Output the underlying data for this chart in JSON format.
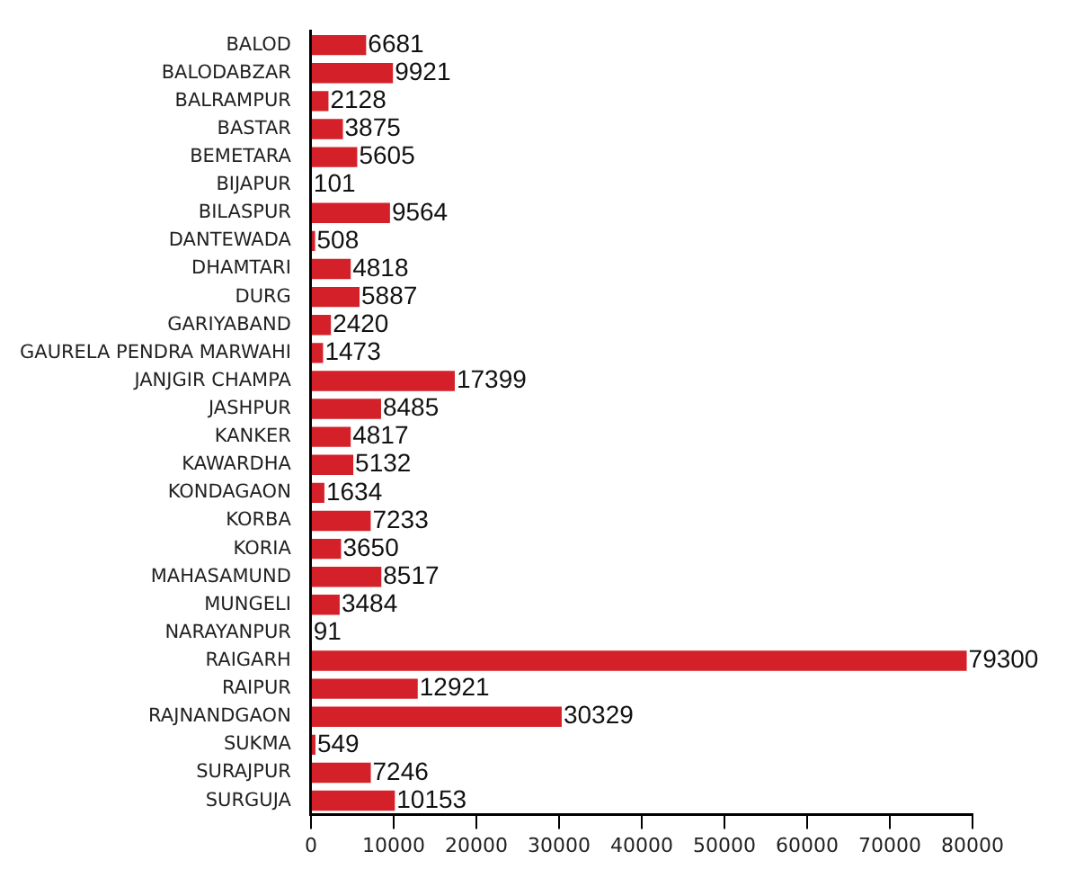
{
  "chart_data": {
    "type": "bar",
    "orientation": "horizontal",
    "categories": [
      "BALOD",
      "BALODABZAR",
      "BALRAMPUR",
      "BASTAR",
      "BEMETARA",
      "BIJAPUR",
      "BILASPUR",
      "DANTEWADA",
      "DHAMTARI",
      "DURG",
      "GARIYABAND",
      "GAURELA PENDRA MARWAHI",
      "JANJGIR CHAMPA",
      "JASHPUR",
      "KANKER",
      "KAWARDHA",
      "KONDAGAON",
      "KORBA",
      "KORIA",
      "MAHASAMUND",
      "MUNGELI",
      "NARAYANPUR",
      "RAIGARH",
      "RAIPUR",
      "RAJNANDGAON",
      "SUKMA",
      "SURAJPUR",
      "SURGUJA"
    ],
    "values": [
      6681,
      9921,
      2128,
      3875,
      5605,
      101,
      9564,
      508,
      4818,
      5887,
      2420,
      1473,
      17399,
      8485,
      4817,
      5132,
      1634,
      7233,
      3650,
      8517,
      3484,
      91,
      79300,
      12921,
      30329,
      549,
      7246,
      10153
    ],
    "color": "#d42129",
    "xlim": [
      0,
      80000
    ],
    "xticks": [
      0,
      10000,
      20000,
      30000,
      40000,
      50000,
      60000,
      70000,
      80000
    ],
    "data_labels": true,
    "grid": false,
    "legend": false
  }
}
